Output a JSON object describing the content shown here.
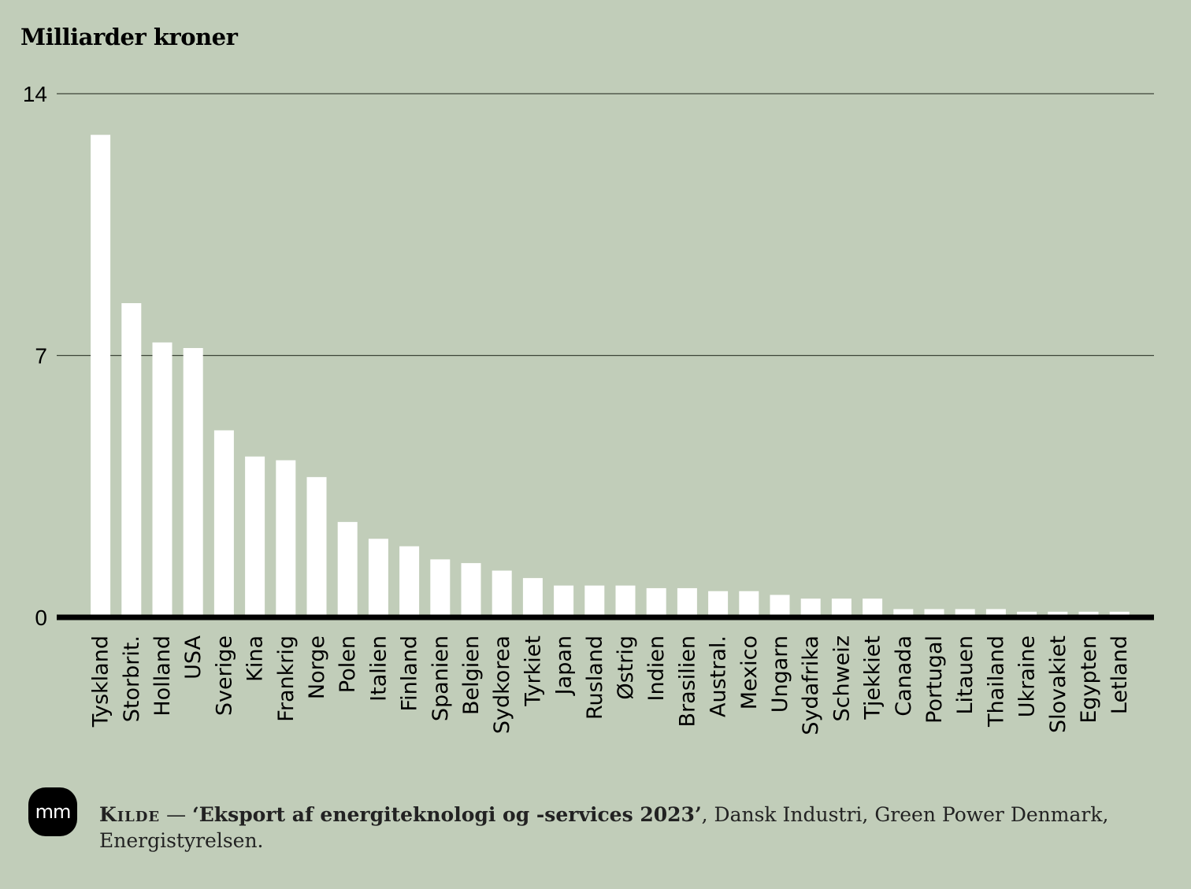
{
  "chart_data": {
    "type": "bar",
    "title": "Milliarder kroner",
    "ylim": [
      0,
      14
    ],
    "yticks": [
      0,
      7,
      14
    ],
    "grid": true,
    "categories": [
      "Tyskland",
      "Storbrit.",
      "Holland",
      "USA",
      "Sverige",
      "Kina",
      "Frankrig",
      "Norge",
      "Polen",
      "Italien",
      "Finland",
      "Spanien",
      "Belgien",
      "Sydkorea",
      "Tyrkiet",
      "Japan",
      "Rusland",
      "Østrig",
      "Indien",
      "Brasilien",
      "Austral.",
      "Mexico",
      "Ungarn",
      "Sydafrika",
      "Schweiz",
      "Tjekkiet",
      "Canada",
      "Portugal",
      "Litauen",
      "Thailand",
      "Ukraine",
      "Slovakiet",
      "Egypten",
      "Letland"
    ],
    "values": [
      12.9,
      8.4,
      7.35,
      7.2,
      5.0,
      4.3,
      4.2,
      3.75,
      2.55,
      2.1,
      1.9,
      1.55,
      1.45,
      1.25,
      1.05,
      0.85,
      0.85,
      0.85,
      0.78,
      0.78,
      0.7,
      0.7,
      0.6,
      0.5,
      0.5,
      0.5,
      0.22,
      0.22,
      0.22,
      0.22,
      0.15,
      0.15,
      0.15,
      0.15
    ],
    "bar_color": "#ffffff",
    "baseline_color": "#000000",
    "grid_color": "#3c4438"
  },
  "source": {
    "label": "Kilde",
    "dash": " — ",
    "title": "‘Eksport af energiteknologi og -services 2023’",
    "rest": ", Dansk Industri, Green Power Denmark, Energistyrelsen."
  },
  "logo": {
    "text": "mm"
  },
  "colors": {
    "background": "#c1cdb9"
  }
}
